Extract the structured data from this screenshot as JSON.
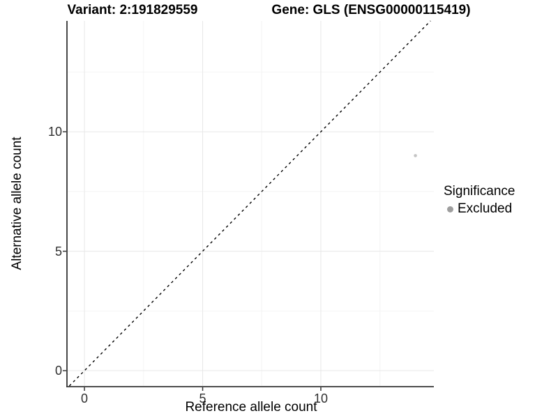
{
  "chart_data": {
    "type": "scatter",
    "titles": {
      "left": "Variant: 2:191829559",
      "right": "Gene: GLS (ENSG00000115419)"
    },
    "xlabel": "Reference allele count",
    "ylabel": "Alternative allele count",
    "xlim": [
      -0.71,
      14.78
    ],
    "ylim": [
      -0.64,
      14.64
    ],
    "x_ticks": [
      0,
      5,
      10
    ],
    "y_ticks": [
      0,
      5,
      10
    ],
    "x_minor_ticks": [
      2.5,
      7.5,
      12.5
    ],
    "y_minor_ticks": [
      2.5,
      7.5,
      12.5
    ],
    "grid": {
      "shown": true,
      "major_color": "#e7e7e7",
      "minor_color": "#f4f4f4"
    },
    "axis_color": "#333333",
    "identity_line": {
      "slope": 1,
      "intercept": 0,
      "style": "dashed",
      "color": "#000000"
    },
    "points": [
      {
        "x": 14,
        "y": 9,
        "significance": "Excluded",
        "color": "#c4c4c4",
        "radius": 2.3
      }
    ],
    "legend": {
      "title": "Significance",
      "position": "right",
      "items": [
        {
          "label": "Excluded",
          "marker": "circle",
          "color": "#9e9e9e"
        }
      ]
    }
  }
}
